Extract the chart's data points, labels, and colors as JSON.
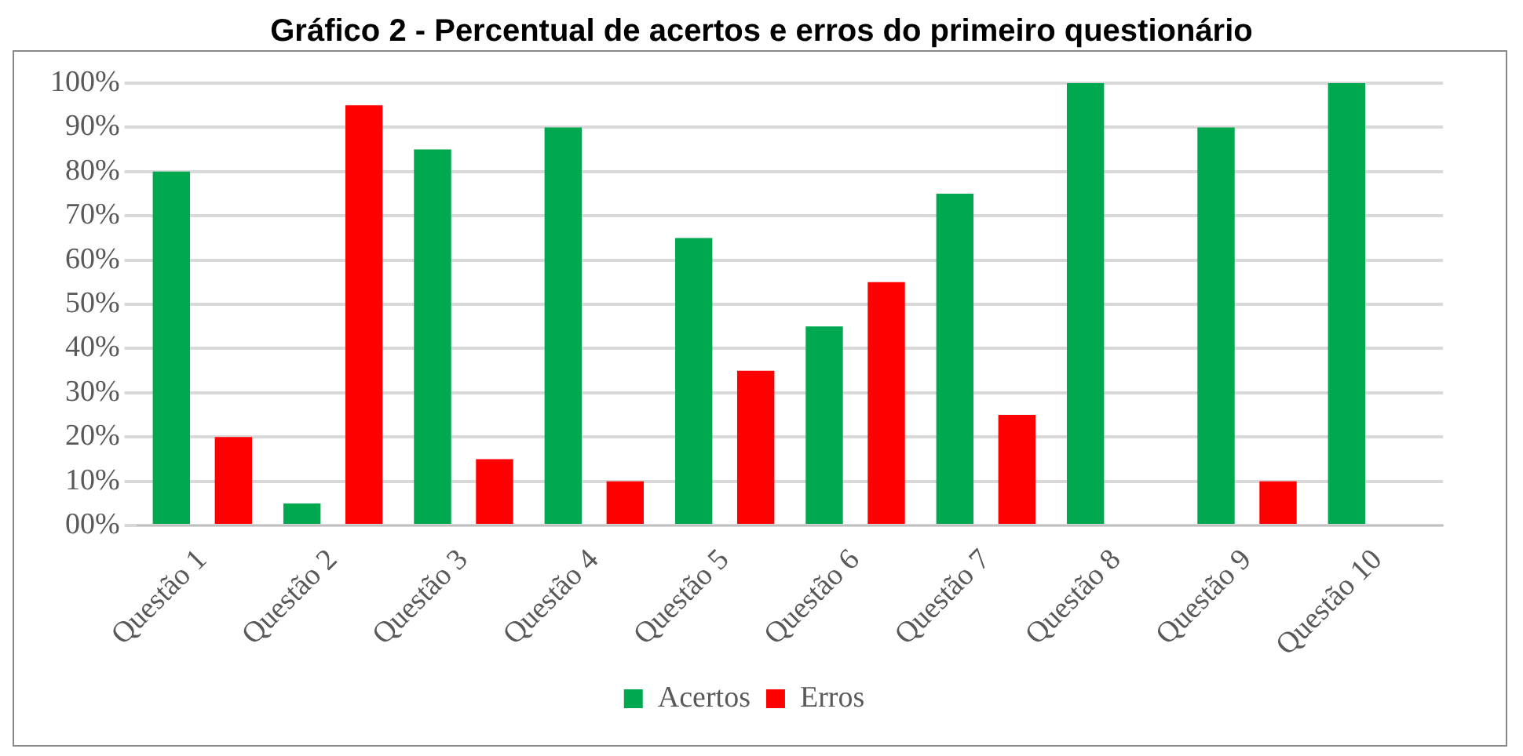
{
  "chart_data": {
    "type": "bar",
    "title": "Gráfico 2 - Percentual de acertos e erros do primeiro questionário",
    "categories": [
      "Questão 1",
      "Questão 2",
      "Questão 3",
      "Questão 4",
      "Questão 5",
      "Questão 6",
      "Questão 7",
      "Questão 8",
      "Questão 9",
      "Questão 10"
    ],
    "series": [
      {
        "name": "Acertos",
        "color": "#00a84f",
        "values": [
          80,
          5,
          85,
          90,
          65,
          45,
          75,
          100,
          90,
          100
        ]
      },
      {
        "name": "Erros",
        "color": "#ff0000",
        "values": [
          20,
          95,
          15,
          10,
          35,
          55,
          25,
          0,
          10,
          0
        ]
      }
    ],
    "ylim": [
      0,
      100
    ],
    "yticks": [
      {
        "value": 0,
        "label": "00%"
      },
      {
        "value": 10,
        "label": "10%"
      },
      {
        "value": 20,
        "label": "20%"
      },
      {
        "value": 30,
        "label": "30%"
      },
      {
        "value": 40,
        "label": "40%"
      },
      {
        "value": 50,
        "label": "50%"
      },
      {
        "value": 60,
        "label": "60%"
      },
      {
        "value": 70,
        "label": "70%"
      },
      {
        "value": 80,
        "label": "80%"
      },
      {
        "value": 90,
        "label": "90%"
      },
      {
        "value": 100,
        "label": "100%"
      }
    ],
    "grid": "y",
    "legend": "bottom"
  }
}
